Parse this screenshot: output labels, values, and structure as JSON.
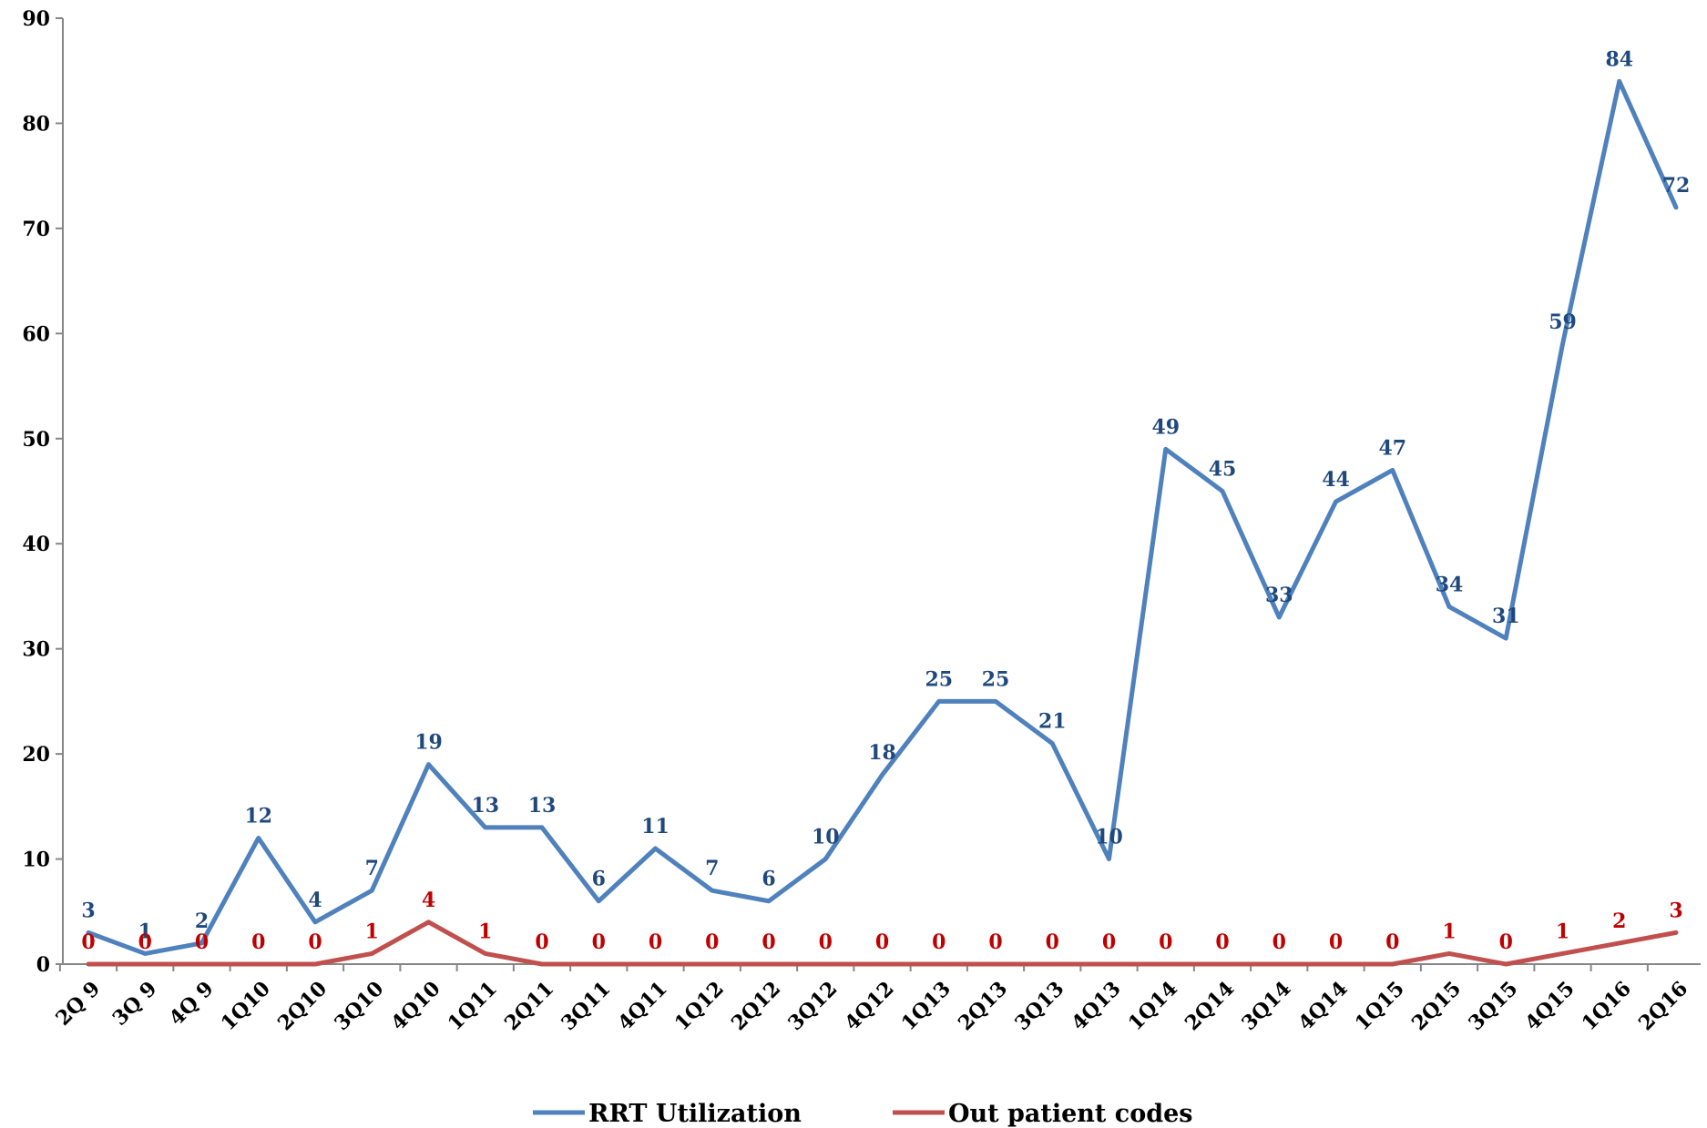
{
  "chart_data": {
    "type": "line",
    "title": "",
    "xlabel": "",
    "ylabel": "",
    "ylim": [
      0,
      90
    ],
    "y_ticks": [
      0,
      10,
      20,
      30,
      40,
      50,
      60,
      70,
      80,
      90
    ],
    "grid": false,
    "legend_position": "bottom",
    "categories": [
      "2Q 9",
      "3Q 9",
      "4Q 9",
      "1Q10",
      "2Q10",
      "3Q10",
      "4Q10",
      "1Q11",
      "2Q11",
      "3Q11",
      "4Q11",
      "1Q12",
      "2Q12",
      "3Q12",
      "4Q12",
      "1Q13",
      "2Q13",
      "3Q13",
      "4Q13",
      "1Q14",
      "2Q14",
      "3Q14",
      "4Q14",
      "1Q15",
      "2Q15",
      "3Q15",
      "4Q15",
      "1Q16",
      "2Q16"
    ],
    "series": [
      {
        "name": "RRT Utilization",
        "color": "#4F81BD",
        "label_color": "#1F497D",
        "values": [
          3,
          1,
          2,
          12,
          4,
          7,
          19,
          13,
          13,
          6,
          11,
          7,
          6,
          10,
          18,
          25,
          25,
          21,
          10,
          49,
          45,
          33,
          44,
          47,
          34,
          31,
          59,
          84,
          72
        ]
      },
      {
        "name": "Out patient codes",
        "color": "#C0504D",
        "label_color": "#C00000",
        "values": [
          0,
          0,
          0,
          0,
          0,
          1,
          4,
          1,
          0,
          0,
          0,
          0,
          0,
          0,
          0,
          0,
          0,
          0,
          0,
          0,
          0,
          0,
          0,
          0,
          1,
          0,
          1,
          2,
          3
        ]
      }
    ]
  }
}
